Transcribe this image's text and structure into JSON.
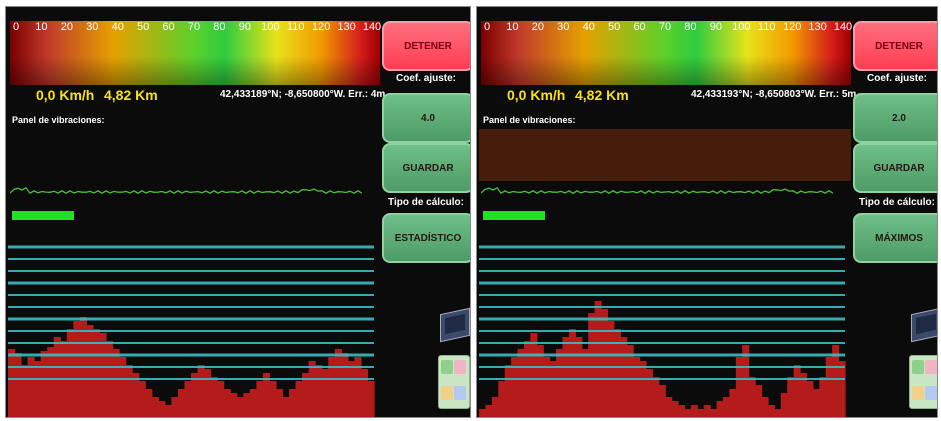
{
  "tick_labels": [
    "0",
    "10",
    "20",
    "30",
    "40",
    "50",
    "60",
    "70",
    "80",
    "90",
    "100",
    "110",
    "120",
    "130",
    "140"
  ],
  "colors": {
    "bar_fill": "#b41c1c",
    "line_color": "#3bbcc3",
    "accent_yellow": "#f6e21b",
    "stop_button": "#ff4a5f",
    "green_button": "#5cab76"
  },
  "panels": [
    {
      "speed": "0,0 Km/h",
      "distance": "4,82 Km",
      "coords": "42,433189°N; -8,650800°W. Err.: 4m",
      "vibration_label": "Panel de vibraciones:",
      "stop_label": "DETENER",
      "coef_label": "Coef. ajuste:",
      "coef_value": "4.0",
      "save_label": "GUARDAR",
      "calc_label": "Tipo de cálculo:",
      "calc_value": "ESTADÍSTICO",
      "show_overlay": false,
      "bars": [
        34,
        32,
        26,
        30,
        28,
        33,
        35,
        40,
        38,
        44,
        48,
        50,
        46,
        44,
        42,
        38,
        34,
        30,
        26,
        22,
        18,
        14,
        10,
        8,
        6,
        10,
        14,
        18,
        22,
        26,
        24,
        20,
        18,
        14,
        12,
        10,
        12,
        14,
        18,
        22,
        18,
        14,
        10,
        14,
        18,
        22,
        28,
        26,
        24,
        30,
        34,
        32,
        28,
        30,
        24,
        18
      ]
    },
    {
      "speed": "0,0 Km/h",
      "distance": "4,82 Km",
      "coords": "42,433193°N; -8,650803°W. Err.: 5m",
      "vibration_label": "Panel de vibraciones:",
      "stop_label": "DETENER",
      "coef_label": "Coef. ajuste:",
      "coef_value": "2.0",
      "save_label": "GUARDAR",
      "calc_label": "Tipo de cálculo:",
      "calc_value": "MÁXIMOS",
      "show_overlay": true,
      "bars": [
        4,
        6,
        10,
        18,
        26,
        30,
        34,
        38,
        42,
        36,
        30,
        28,
        34,
        40,
        44,
        40,
        34,
        52,
        58,
        54,
        48,
        44,
        40,
        36,
        30,
        28,
        24,
        20,
        16,
        10,
        8,
        6,
        4,
        6,
        4,
        6,
        4,
        8,
        10,
        14,
        30,
        36,
        20,
        16,
        10,
        6,
        4,
        12,
        20,
        26,
        22,
        18,
        14,
        20,
        30,
        36,
        28
      ]
    }
  ]
}
